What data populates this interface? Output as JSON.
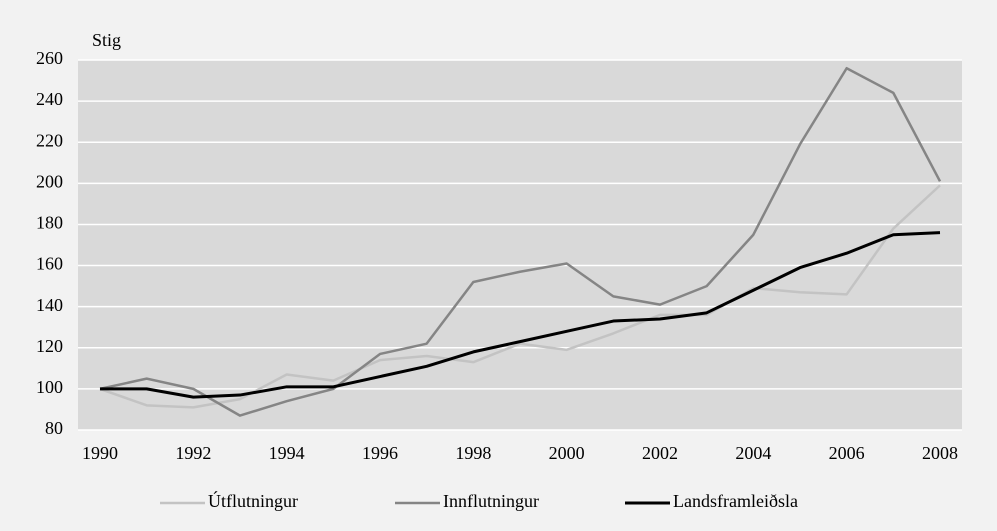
{
  "chart_data": {
    "type": "line",
    "y_label": "Stig",
    "x": [
      1990,
      1991,
      1992,
      1993,
      1994,
      1995,
      1996,
      1997,
      1998,
      1999,
      2000,
      2001,
      2002,
      2003,
      2004,
      2005,
      2006,
      2007,
      2008
    ],
    "series": [
      {
        "name": "Útflutningur",
        "color": "#c3c3c3",
        "values": [
          100,
          92,
          91,
          95,
          107,
          104,
          114,
          116,
          113,
          122,
          119,
          127,
          136,
          136,
          149,
          147,
          146,
          178,
          199
        ]
      },
      {
        "name": "Innflutningur",
        "color": "#858585",
        "values": [
          100,
          105,
          100,
          87,
          94,
          100,
          117,
          122,
          152,
          157,
          161,
          145,
          141,
          150,
          175,
          219,
          256,
          244,
          201
        ]
      },
      {
        "name": "Landsframleiðsla",
        "color": "#000000",
        "values": [
          100,
          100,
          96,
          97,
          101,
          101,
          106,
          111,
          118,
          123,
          128,
          133,
          134,
          137,
          148,
          159,
          166,
          175,
          176
        ]
      }
    ],
    "xlim": [
      1990,
      2008
    ],
    "xticks": [
      1990,
      1992,
      1994,
      1996,
      1998,
      2000,
      2002,
      2004,
      2006,
      2008
    ],
    "ylim": [
      80,
      260
    ],
    "yticks": [
      80,
      100,
      120,
      140,
      160,
      180,
      200,
      220,
      240,
      260
    ],
    "grid": true,
    "legend": "bottom"
  }
}
